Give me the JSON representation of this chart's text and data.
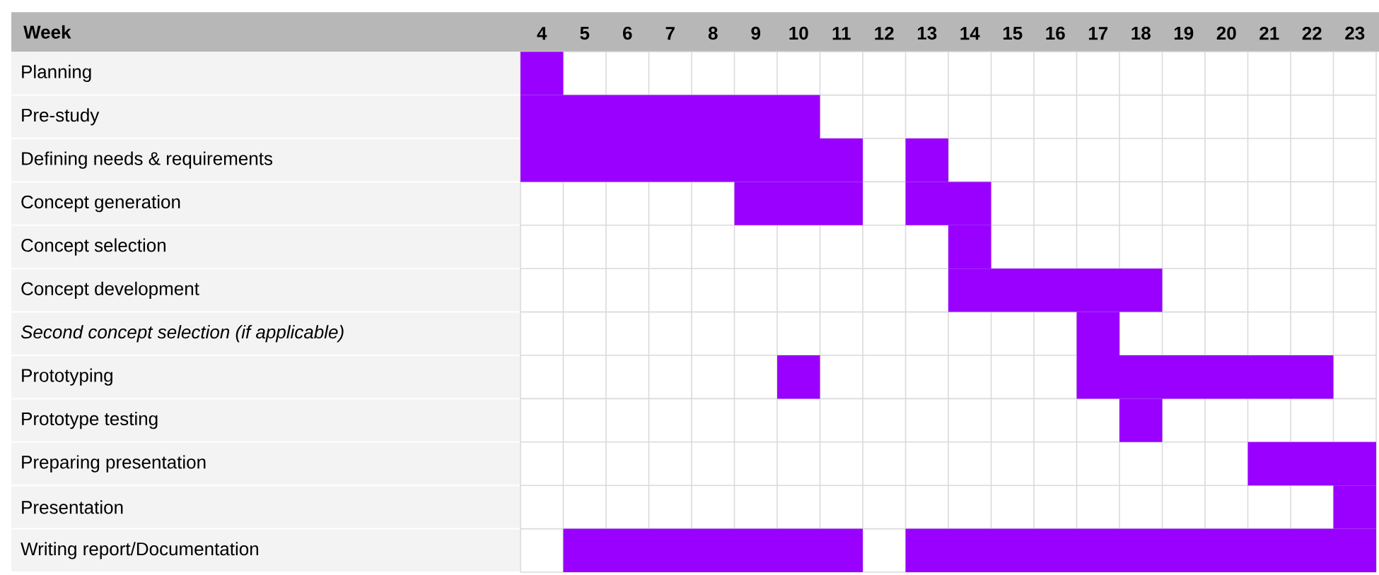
{
  "chart_data": {
    "type": "bar",
    "orientation": "horizontal",
    "xlabel": "Week",
    "categories": [
      "Planning",
      "Pre-study",
      "Defining needs & requirements",
      "Concept generation",
      "Concept selection",
      "Concept development",
      "*Second concept selection (if applicable)*",
      "Prototyping",
      "Prototype testing",
      "Preparing presentation",
      "Presentation",
      "Writing report/Documentation"
    ],
    "xlim": [
      4,
      24
    ],
    "xticks": [
      {
        "value": 4.5,
        "label": "4"
      },
      {
        "value": 5.5,
        "label": "5"
      },
      {
        "value": 6.5,
        "label": "6"
      },
      {
        "value": 7.5,
        "label": "7"
      },
      {
        "value": 8.5,
        "label": "8"
      },
      {
        "value": 9.5,
        "label": "9"
      },
      {
        "value": 10.5,
        "label": "10"
      },
      {
        "value": 11.5,
        "label": "11"
      },
      {
        "value": 12.5,
        "label": "12"
      },
      {
        "value": 13.5,
        "label": "13"
      },
      {
        "value": 14.5,
        "label": "14"
      },
      {
        "value": 15.5,
        "label": "15"
      },
      {
        "value": 16.5,
        "label": "16"
      },
      {
        "value": 17.5,
        "label": "17"
      },
      {
        "value": 18.5,
        "label": "18"
      },
      {
        "value": 19.5,
        "label": "19"
      },
      {
        "value": 20.5,
        "label": "20"
      },
      {
        "value": 21.5,
        "label": "21"
      },
      {
        "value": 22.5,
        "label": "22"
      },
      {
        "value": 23.5,
        "label": "23"
      }
    ],
    "grid": true,
    "series": [
      {
        "color": "#9900ff",
        "base": [
          4,
          4,
          4,
          9,
          14,
          14,
          17,
          10,
          18,
          21,
          23,
          5
        ],
        "values": [
          1,
          7,
          8,
          3,
          1,
          5,
          1,
          1,
          1,
          3,
          1,
          7
        ]
      },
      {
        "color": "#9900ff",
        "base": [
          null,
          null,
          13,
          13,
          null,
          null,
          null,
          17,
          null,
          null,
          null,
          13
        ],
        "values": [
          null,
          null,
          1,
          2,
          null,
          null,
          null,
          6,
          null,
          null,
          null,
          11
        ]
      }
    ]
  }
}
